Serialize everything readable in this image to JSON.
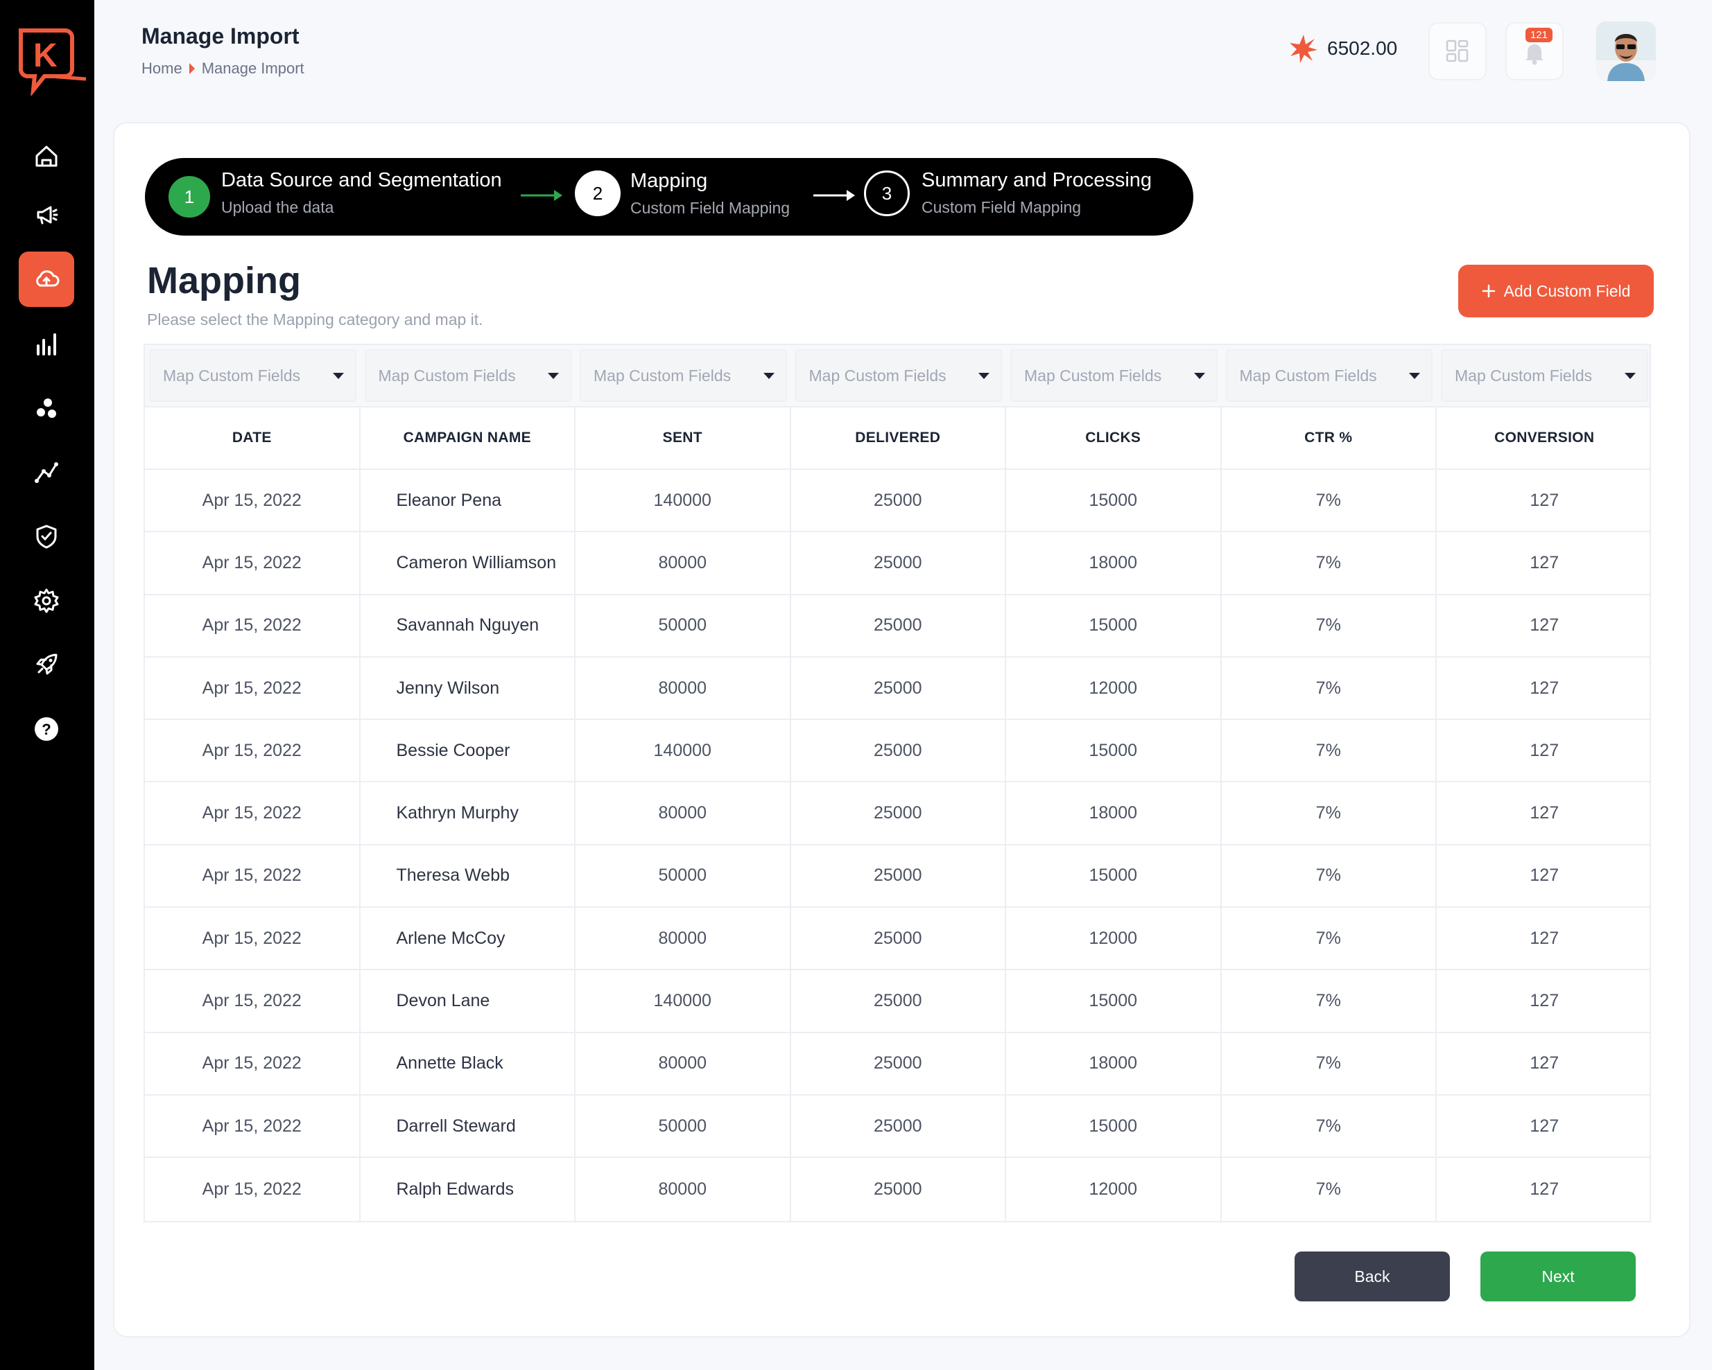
{
  "colors": {
    "accent": "#ef5a3c",
    "success": "#2ea84d",
    "sidebar": "#000000",
    "dark_button": "#3c3f4d"
  },
  "sidebar": {
    "logo": "K",
    "items": [
      {
        "icon": "home-icon",
        "active": false
      },
      {
        "icon": "megaphone-icon",
        "active": false
      },
      {
        "icon": "cloud-upload-icon",
        "active": true
      },
      {
        "icon": "bar-chart-icon",
        "active": false
      },
      {
        "icon": "segments-icon",
        "active": false
      },
      {
        "icon": "trend-icon",
        "active": false
      },
      {
        "icon": "shield-check-icon",
        "active": false
      },
      {
        "icon": "gear-icon",
        "active": false
      },
      {
        "icon": "rocket-icon",
        "active": false
      },
      {
        "icon": "help-icon",
        "active": false
      }
    ]
  },
  "header": {
    "title": "Manage Import",
    "breadcrumb": [
      "Home",
      "Manage Import"
    ],
    "credits": "6502.00",
    "notifications": "121"
  },
  "stepper": {
    "steps": [
      {
        "num": "1",
        "title": "Data Source and Segmentation",
        "sub": "Upload the data",
        "state": "done"
      },
      {
        "num": "2",
        "title": "Mapping",
        "sub": "Custom Field Mapping",
        "state": "current"
      },
      {
        "num": "3",
        "title": "Summary and Processing",
        "sub": "Custom Field Mapping",
        "state": "upcoming"
      }
    ]
  },
  "mapping": {
    "title": "Mapping",
    "subtitle": "Please select the Mapping category and map it.",
    "add_button": "Add Custom Field"
  },
  "table": {
    "select_placeholder": "Map Custom Fields",
    "columns": [
      "DATE",
      "CAMPAIGN NAME",
      "SENT",
      "DELIVERED",
      "CLICKS",
      "CTR %",
      "CONVERSION"
    ],
    "rows": [
      [
        "Apr 15, 2022",
        "Eleanor Pena",
        "140000",
        "25000",
        "15000",
        "7%",
        "127"
      ],
      [
        "Apr 15, 2022",
        "Cameron Williamson",
        "80000",
        "25000",
        "18000",
        "7%",
        "127"
      ],
      [
        "Apr 15, 2022",
        "Savannah Nguyen",
        "50000",
        "25000",
        "15000",
        "7%",
        "127"
      ],
      [
        "Apr 15, 2022",
        "Jenny Wilson",
        "80000",
        "25000",
        "12000",
        "7%",
        "127"
      ],
      [
        "Apr 15, 2022",
        "Bessie Cooper",
        "140000",
        "25000",
        "15000",
        "7%",
        "127"
      ],
      [
        "Apr 15, 2022",
        "Kathryn Murphy",
        "80000",
        "25000",
        "18000",
        "7%",
        "127"
      ],
      [
        "Apr 15, 2022",
        "Theresa Webb",
        "50000",
        "25000",
        "15000",
        "7%",
        "127"
      ],
      [
        "Apr 15, 2022",
        "Arlene McCoy",
        "80000",
        "25000",
        "12000",
        "7%",
        "127"
      ],
      [
        "Apr 15, 2022",
        "Devon Lane",
        "140000",
        "25000",
        "15000",
        "7%",
        "127"
      ],
      [
        "Apr 15, 2022",
        "Annette Black",
        "80000",
        "25000",
        "18000",
        "7%",
        "127"
      ],
      [
        "Apr 15, 2022",
        "Darrell Steward",
        "50000",
        "25000",
        "15000",
        "7%",
        "127"
      ],
      [
        "Apr 15, 2022",
        "Ralph Edwards",
        "80000",
        "25000",
        "12000",
        "7%",
        "127"
      ]
    ]
  },
  "footer": {
    "back": "Back",
    "next": "Next"
  }
}
